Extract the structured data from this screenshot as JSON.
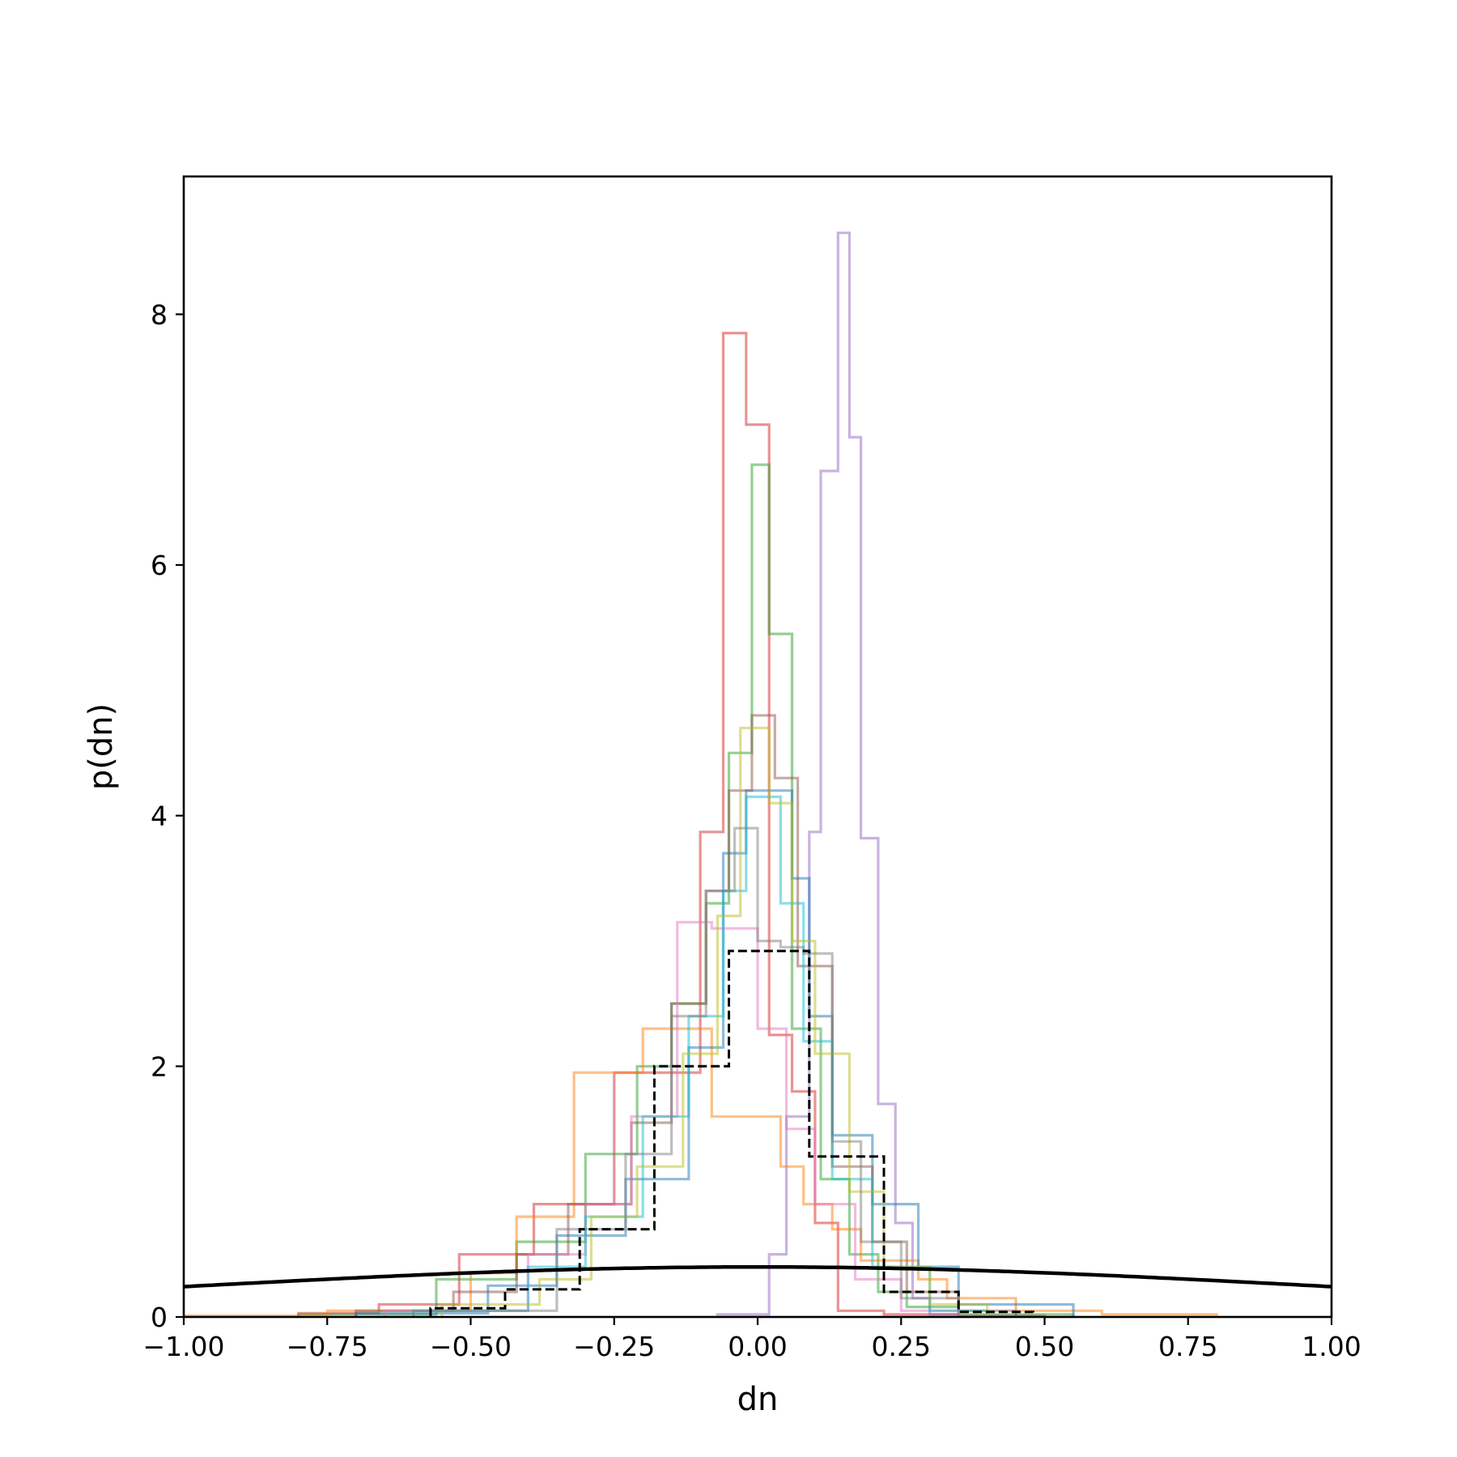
{
  "chart_data": {
    "type": "histogram-step",
    "xlabel": "dn",
    "ylabel": "p(dn)",
    "xlim": [
      -1.0,
      1.0
    ],
    "ylim": [
      0,
      9.1
    ],
    "x_ticks": [
      -1.0,
      -0.75,
      -0.5,
      -0.25,
      0.0,
      0.25,
      0.5,
      0.75,
      1.0
    ],
    "x_tick_labels": [
      "−1.00",
      "−0.75",
      "−0.50",
      "−0.25",
      "0.00",
      "0.25",
      "0.50",
      "0.75",
      "1.00"
    ],
    "y_ticks": [
      0,
      2,
      4,
      6,
      8
    ],
    "y_tick_labels": [
      "0",
      "2",
      "4",
      "6",
      "8"
    ],
    "grid": false,
    "legend": "none",
    "series": [
      {
        "color": "#d62728",
        "alpha": 0.5,
        "style": "solid",
        "edges": [
          -0.8,
          -0.66,
          -0.52,
          -0.39,
          -0.25,
          -0.1,
          -0.06,
          -0.02,
          0.02,
          0.06,
          0.1,
          0.14,
          0.22,
          0.35,
          0.5
        ],
        "values": [
          0.03,
          0.1,
          0.5,
          0.9,
          1.95,
          3.87,
          7.85,
          7.12,
          2.25,
          1.8,
          0.75,
          0.05,
          0.02,
          0.01
        ]
      },
      {
        "color": "#9467bd",
        "alpha": 0.5,
        "style": "solid",
        "edges": [
          -0.07,
          0.02,
          0.05,
          0.09,
          0.11,
          0.14,
          0.16,
          0.18,
          0.21,
          0.24,
          0.27,
          0.3,
          0.35
        ],
        "values": [
          0.02,
          0.5,
          1.6,
          3.87,
          6.75,
          8.65,
          7.02,
          3.82,
          1.7,
          0.75,
          0.15,
          0.02
        ]
      },
      {
        "color": "#2ca02c",
        "alpha": 0.5,
        "style": "solid",
        "edges": [
          -0.8,
          -0.56,
          -0.42,
          -0.3,
          -0.21,
          -0.15,
          -0.09,
          -0.05,
          -0.01,
          0.02,
          0.06,
          0.11,
          0.16,
          0.21,
          0.26,
          0.35,
          0.55
        ],
        "values": [
          0.02,
          0.3,
          0.6,
          1.3,
          2.0,
          2.5,
          3.3,
          4.5,
          6.8,
          5.45,
          2.3,
          1.1,
          0.5,
          0.2,
          0.08,
          0.02
        ]
      },
      {
        "color": "#ff7f0e",
        "alpha": 0.5,
        "style": "solid",
        "edges": [
          -1.0,
          -0.75,
          -0.5,
          -0.42,
          -0.32,
          -0.2,
          -0.08,
          0.04,
          0.08,
          0.13,
          0.18,
          0.23,
          0.28,
          0.33,
          0.45,
          0.6,
          0.8
        ],
        "values": [
          0.01,
          0.05,
          0.35,
          0.8,
          1.95,
          2.3,
          1.6,
          1.2,
          0.9,
          0.7,
          0.45,
          0.45,
          0.3,
          0.15,
          0.05,
          0.02
        ]
      },
      {
        "color": "#1f77b4",
        "alpha": 0.5,
        "style": "solid",
        "edges": [
          -0.7,
          -0.47,
          -0.35,
          -0.23,
          -0.12,
          -0.06,
          -0.02,
          0.02,
          0.06,
          0.09,
          0.13,
          0.2,
          0.28,
          0.35,
          0.55
        ],
        "values": [
          0.03,
          0.25,
          0.65,
          1.1,
          2.15,
          3.7,
          4.2,
          4.2,
          3.5,
          2.4,
          1.45,
          0.9,
          0.4,
          0.1
        ]
      },
      {
        "color": "#8c564b",
        "alpha": 0.5,
        "style": "solid",
        "edges": [
          -0.7,
          -0.53,
          -0.42,
          -0.33,
          -0.22,
          -0.15,
          -0.09,
          -0.05,
          -0.01,
          0.03,
          0.07,
          0.13,
          0.2,
          0.26,
          0.35,
          0.45
        ],
        "values": [
          0.05,
          0.2,
          0.5,
          0.9,
          1.55,
          2.5,
          3.4,
          4.2,
          4.8,
          4.3,
          2.8,
          1.2,
          0.6,
          0.2,
          0.05
        ]
      },
      {
        "color": "#e377c2",
        "alpha": 0.5,
        "style": "solid",
        "edges": [
          -0.65,
          -0.4,
          -0.3,
          -0.22,
          -0.14,
          -0.08,
          0.0,
          0.05,
          0.1,
          0.17,
          0.25,
          0.35
        ],
        "values": [
          0.05,
          0.5,
          0.9,
          1.6,
          3.15,
          3.1,
          2.3,
          1.5,
          0.9,
          0.3,
          0.05
        ]
      },
      {
        "color": "#17becf",
        "alpha": 0.5,
        "style": "solid",
        "edges": [
          -0.6,
          -0.4,
          -0.3,
          -0.2,
          -0.12,
          -0.06,
          -0.02,
          0.04,
          0.08,
          0.13,
          0.2,
          0.3,
          0.4
        ],
        "values": [
          0.05,
          0.4,
          0.8,
          1.6,
          2.4,
          3.4,
          4.15,
          3.3,
          2.2,
          1.1,
          0.4,
          0.05
        ]
      },
      {
        "color": "#bcbd22",
        "alpha": 0.5,
        "style": "solid",
        "edges": [
          -0.55,
          -0.38,
          -0.29,
          -0.21,
          -0.13,
          -0.07,
          -0.03,
          0.02,
          0.06,
          0.1,
          0.16,
          0.22,
          0.3,
          0.4
        ],
        "values": [
          0.1,
          0.3,
          0.8,
          1.2,
          2.1,
          3.2,
          4.7,
          4.1,
          3.0,
          2.1,
          1.0,
          0.4,
          0.1
        ]
      },
      {
        "color": "#7f7f7f",
        "alpha": 0.5,
        "style": "solid",
        "edges": [
          -0.6,
          -0.35,
          -0.23,
          -0.15,
          -0.09,
          -0.04,
          0.0,
          0.04,
          0.08,
          0.13,
          0.18,
          0.25,
          0.35
        ],
        "values": [
          0.05,
          0.7,
          1.3,
          2.4,
          3.4,
          3.9,
          3.0,
          2.95,
          2.9,
          1.4,
          0.6,
          0.15
        ]
      },
      {
        "color": "#000000",
        "alpha": 1.0,
        "style": "dashed",
        "edges": [
          -0.57,
          -0.44,
          -0.31,
          -0.18,
          -0.05,
          0.09,
          0.22,
          0.35,
          0.48
        ],
        "values": [
          0.07,
          0.22,
          0.7,
          2.0,
          2.92,
          1.28,
          0.2,
          0.04
        ]
      }
    ],
    "curve": {
      "color": "#000000",
      "x": [
        -1.0,
        -0.8,
        -0.6,
        -0.4,
        -0.2,
        0.0,
        0.2,
        0.4,
        0.6,
        0.8,
        1.0
      ],
      "y": [
        0.242,
        0.29,
        0.333,
        0.368,
        0.391,
        0.399,
        0.391,
        0.368,
        0.333,
        0.29,
        0.242
      ]
    }
  }
}
